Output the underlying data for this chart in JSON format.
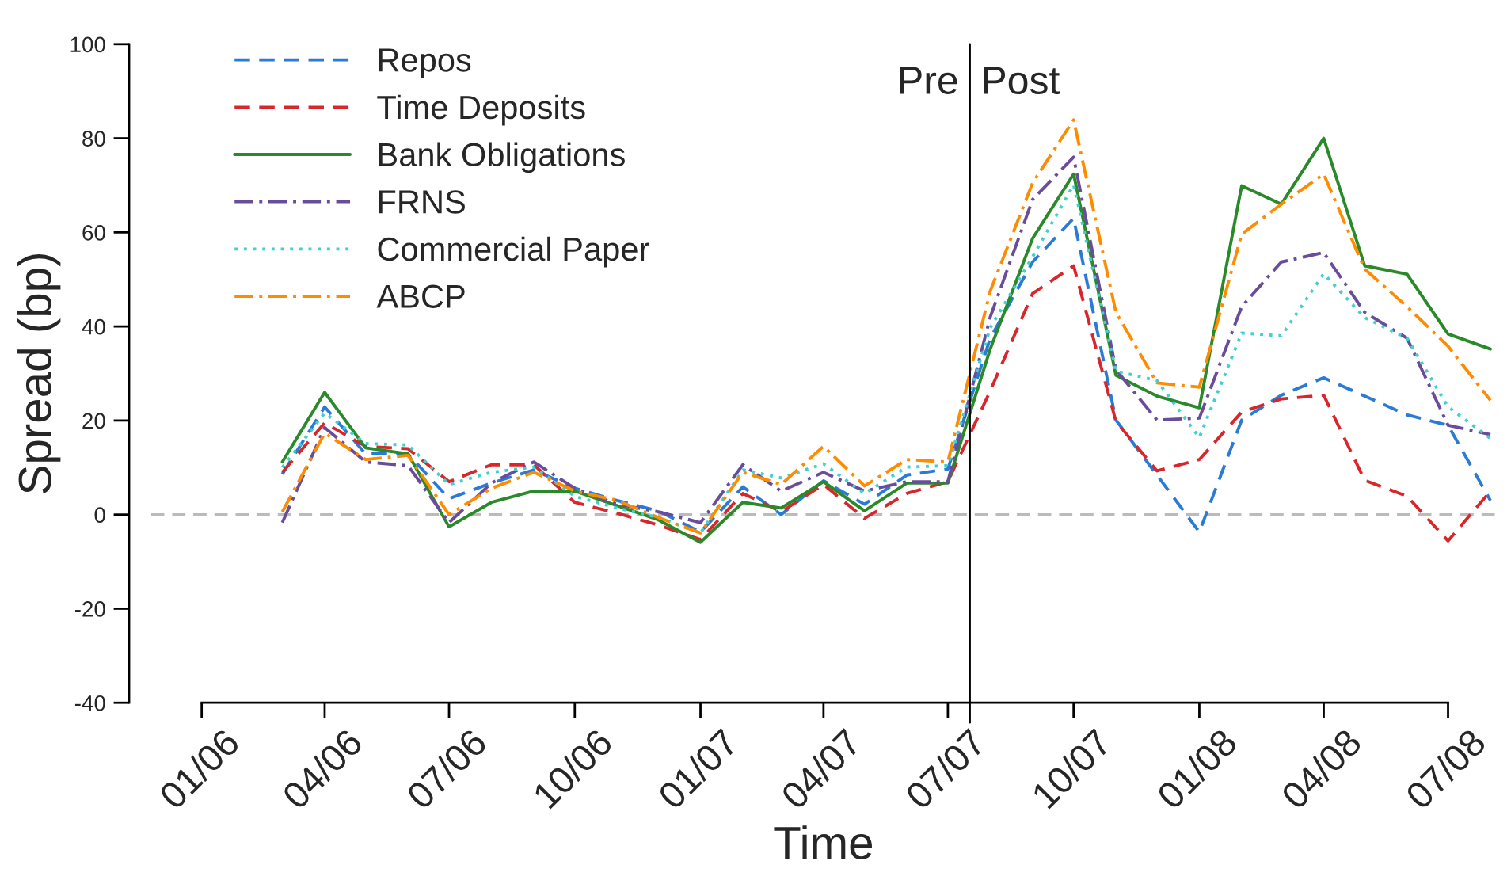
{
  "chart_data": {
    "type": "line",
    "xlabel": "Time",
    "ylabel": "Spread (bp)",
    "x": [
      "2006-03",
      "2006-04",
      "2006-05",
      "2006-06",
      "2006-07",
      "2006-08",
      "2006-09",
      "2006-10",
      "2006-11",
      "2006-12",
      "2007-01",
      "2007-02",
      "2007-03",
      "2007-04",
      "2007-05",
      "2007-06",
      "2007-07",
      "2007-08",
      "2007-09",
      "2007-10",
      "2007-11",
      "2007-12",
      "2008-01",
      "2008-02",
      "2008-03",
      "2008-04",
      "2008-05",
      "2008-06",
      "2008-07",
      "2008-08"
    ],
    "series": [
      {
        "name": "Repos",
        "color": "#2a7bd6",
        "line_style": "dashed",
        "values": [
          8.6,
          22.9,
          12.9,
          12.9,
          3.4,
          6.7,
          9.5,
          5.6,
          3,
          0.8,
          -3.7,
          5.9,
          0,
          7.2,
          2.2,
          8.4,
          9.7,
          37.5,
          53.7,
          63,
          20.1,
          8.4,
          -3.7,
          20.1,
          25.4,
          29.1,
          25.2,
          21.2,
          19,
          3
        ]
      },
      {
        "name": "Time Deposits",
        "color": "#d9262b",
        "line_style": "dashed",
        "values": [
          9,
          19.5,
          14.5,
          14,
          7,
          10.6,
          10.6,
          2.6,
          0.3,
          -2.2,
          -5.3,
          4.5,
          0.6,
          6.4,
          -0.8,
          4.5,
          7,
          26.3,
          47,
          52.9,
          19.8,
          9.3,
          11.7,
          21.8,
          24.6,
          25.4,
          7.3,
          3.9,
          -5.6,
          5
        ]
      },
      {
        "name": "Bank Obligations",
        "color": "#2a8a2a",
        "line_style": "solid",
        "values": [
          11.2,
          26,
          14.2,
          12.9,
          -2.6,
          2.6,
          5,
          5,
          1.9,
          -1.1,
          -5.9,
          2.6,
          1.4,
          7,
          0.8,
          6.7,
          6.7,
          35.2,
          58.7,
          72.4,
          29.6,
          25.2,
          22.7,
          69.9,
          66,
          80,
          52.9,
          51.1,
          38.4,
          35.2
        ]
      },
      {
        "name": "FRNS",
        "color": "#6a4c9c",
        "line_style": "dashdot",
        "values": [
          -1.7,
          18.5,
          11.2,
          10.4,
          -1.7,
          6.7,
          11.2,
          5.6,
          2.2,
          0.6,
          -1.7,
          10.6,
          5,
          9,
          5,
          7,
          7,
          42,
          67,
          76,
          30.8,
          20.1,
          20.5,
          44.2,
          53.7,
          55.7,
          43,
          37.5,
          19,
          17
        ]
      },
      {
        "name": "Commercial Paper",
        "color": "#40d0d0",
        "line_style": "dotted",
        "values": [
          10,
          21.6,
          15.1,
          14.8,
          6.4,
          9,
          10.1,
          3.9,
          1.4,
          -0.6,
          -3.9,
          9.5,
          7.8,
          10.8,
          4.5,
          10.1,
          10.4,
          39.7,
          54.8,
          70.1,
          30.5,
          28.5,
          16.4,
          38.6,
          38,
          51.2,
          41.9,
          37.5,
          22.9,
          16.2
        ]
      },
      {
        "name": "ABCP",
        "color": "#ff8c00",
        "line_style": "dashdot",
        "values": [
          0.6,
          17.3,
          11.7,
          12.6,
          0,
          5.6,
          9,
          5,
          3,
          -0.6,
          -3.9,
          9,
          6.4,
          14.5,
          6.1,
          11.7,
          11.2,
          47.5,
          70.5,
          83.9,
          43,
          28,
          27.1,
          59.6,
          66,
          72.4,
          52.2,
          44.2,
          35.8,
          24.3
        ]
      }
    ],
    "xlim": [
      "2005-11-25",
      "2008-08-05"
    ],
    "xticks": [
      {
        "value": "2006-01",
        "label": "01/06"
      },
      {
        "value": "2006-04",
        "label": "04/06"
      },
      {
        "value": "2006-07",
        "label": "07/06"
      },
      {
        "value": "2006-10",
        "label": "10/06"
      },
      {
        "value": "2007-01",
        "label": "01/07"
      },
      {
        "value": "2007-04",
        "label": "04/07"
      },
      {
        "value": "2007-07",
        "label": "07/07"
      },
      {
        "value": "2007-10",
        "label": "10/07"
      },
      {
        "value": "2008-01",
        "label": "01/08"
      },
      {
        "value": "2008-04",
        "label": "04/08"
      },
      {
        "value": "2008-07",
        "label": "07/08"
      }
    ],
    "ylim": [
      -40,
      100
    ],
    "yticks": [
      -40,
      -20,
      0,
      20,
      40,
      60,
      80,
      100
    ],
    "ref_lines": [
      {
        "axis": "y",
        "value": 0,
        "color": "#bbbbbb",
        "line_style": "dashed"
      },
      {
        "axis": "x",
        "value": "2007-07-17",
        "color": "#000000",
        "line_style": "solid"
      }
    ],
    "annotations": [
      "Pre",
      "Post"
    ],
    "legend": "top left",
    "grid": false,
    "marker": "none"
  }
}
